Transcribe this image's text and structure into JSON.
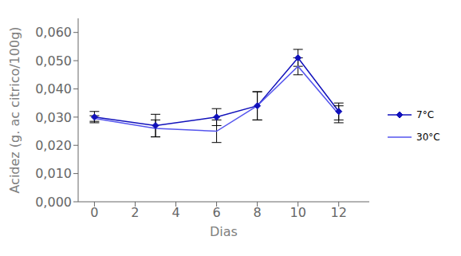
{
  "chart_data": {
    "type": "line",
    "x": [
      0,
      3,
      6,
      8,
      10,
      12
    ],
    "xlabel": "Dias",
    "ylabel": "Acidez (g. ac citrico/100g)",
    "xlim": [
      -0.8,
      13.5
    ],
    "ylim": [
      0.0,
      0.065
    ],
    "xticks": [
      0,
      2,
      4,
      6,
      8,
      10,
      12
    ],
    "yticks": [
      {
        "value": 0.0,
        "label": "0,000"
      },
      {
        "value": 0.01,
        "label": "0,010"
      },
      {
        "value": 0.02,
        "label": "0,020"
      },
      {
        "value": 0.03,
        "label": "0,030"
      },
      {
        "value": 0.04,
        "label": "0,040"
      },
      {
        "value": 0.05,
        "label": "0,050"
      },
      {
        "value": 0.06,
        "label": "0,060"
      }
    ],
    "legend": "right",
    "grid": false,
    "series": [
      {
        "name": "7°C",
        "color": "#1111bb",
        "marker": "diamond",
        "line_style": "solid",
        "values": [
          0.03,
          0.027,
          0.03,
          0.034,
          0.051,
          0.032
        ],
        "yerr": [
          0.002,
          0.004,
          0.003,
          0.005,
          0.003,
          0.003
        ]
      },
      {
        "name": "30°C",
        "color": "#5555ee",
        "marker": "none",
        "line_style": "solid",
        "values": [
          0.0295,
          0.026,
          0.025,
          0.034,
          0.048,
          0.031
        ],
        "yerr": [
          0.001,
          0.003,
          0.004,
          0.005,
          0.003,
          0.003
        ]
      }
    ]
  }
}
